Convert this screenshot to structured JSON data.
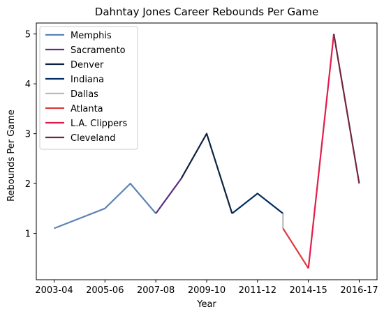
{
  "chart_data": {
    "type": "line",
    "title": "Dahntay Jones Career Rebounds Per Game",
    "xlabel": "Year",
    "ylabel": "Rebounds Per Game",
    "x_ticks": [
      "2003-04",
      "2005-06",
      "2007-08",
      "2009-10",
      "2011-12",
      "2014-15",
      "2016-17"
    ],
    "x_tick_positions": [
      0,
      2,
      4,
      6,
      8,
      10,
      12
    ],
    "y_ticks": [
      1,
      2,
      3,
      4,
      5
    ],
    "xlim": [
      -0.7,
      12.7
    ],
    "ylim": [
      0.07,
      5.22
    ],
    "legend_position": "upper-left",
    "series": [
      {
        "name": "Memphis",
        "color": "#5d83b8",
        "points": [
          [
            0,
            1.1
          ],
          [
            2,
            1.5
          ],
          [
            3,
            2.0
          ],
          [
            4,
            1.4
          ]
        ]
      },
      {
        "name": "Sacramento",
        "color": "#5a2d81",
        "points": [
          [
            4,
            1.4
          ],
          [
            5,
            2.1
          ]
        ]
      },
      {
        "name": "Denver",
        "color": "#0e2240",
        "points": [
          [
            5,
            2.1
          ],
          [
            6,
            3.0
          ],
          [
            7,
            1.4
          ]
        ]
      },
      {
        "name": "Indiana",
        "color": "#002d62",
        "points": [
          [
            7,
            1.4
          ],
          [
            8,
            1.8
          ],
          [
            9,
            1.4
          ]
        ]
      },
      {
        "name": "Dallas",
        "color": "#bbbbbb",
        "points": [
          [
            9,
            1.4
          ],
          [
            9,
            1.1
          ]
        ]
      },
      {
        "name": "Atlanta",
        "color": "#e03a3e",
        "points": [
          [
            9,
            1.1
          ],
          [
            10,
            0.3
          ]
        ]
      },
      {
        "name": "L.A. Clippers",
        "color": "#e31c49",
        "points": [
          [
            10,
            0.3
          ],
          [
            11,
            5.0
          ]
        ]
      },
      {
        "name": "Cleveland",
        "color": "#6f263d",
        "points": [
          [
            11,
            5.0
          ],
          [
            12,
            2.0
          ]
        ]
      }
    ]
  }
}
